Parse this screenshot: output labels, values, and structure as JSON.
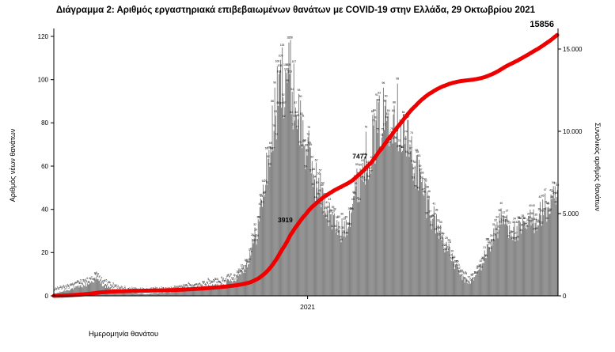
{
  "title": "Διάγραμμα 2: Αριθμός εργαστηριακά επιβεβαιωμένων θανάτων με COVID-19 στην Ελλάδα, 29 Οκτωβρίου 2021",
  "colors": {
    "bar": "#828282",
    "line": "#ee0000",
    "annotation": "#ee0000",
    "axis": "#000000",
    "text": "#000000",
    "background": "#ffffff"
  },
  "chart_data": {
    "type": "bar",
    "description": "Daily laboratory-confirmed COVID-19 deaths in Greece (gray bars, left axis) with cumulative total deaths (red line, right axis), March 2020 to 29 October 2021",
    "x_axis": {
      "label": "Ημερομηνία θανάτου",
      "ticks": [
        {
          "label": "2021",
          "day": 306
        }
      ],
      "start": "2020-03",
      "end": "2021-10-29",
      "total_days": 607
    },
    "left_axis": {
      "label": "Αριθμός νέων θανάτων",
      "ticks": [
        0,
        20,
        40,
        60,
        80,
        100,
        120
      ],
      "range": [
        0,
        125
      ]
    },
    "right_axis": {
      "label": "Συνολικός αριθμός θανάτων",
      "ticks": [
        {
          "value": 0,
          "label": "0"
        },
        {
          "value": 5000,
          "label": "5.000"
        },
        {
          "value": 10000,
          "label": "10.000"
        },
        {
          "value": 15000,
          "label": "15.000"
        }
      ],
      "range": [
        0,
        16600
      ]
    },
    "series": [
      {
        "name": "daily-deaths",
        "type": "bar",
        "color": "#828282",
        "envelope_keypoints": [
          [
            0,
            1
          ],
          [
            15,
            3
          ],
          [
            40,
            6
          ],
          [
            50,
            9
          ],
          [
            62,
            5
          ],
          [
            80,
            2
          ],
          [
            110,
            1
          ],
          [
            140,
            2
          ],
          [
            170,
            4
          ],
          [
            200,
            6
          ],
          [
            218,
            9
          ],
          [
            232,
            16
          ],
          [
            245,
            35
          ],
          [
            255,
            62
          ],
          [
            265,
            92
          ],
          [
            273,
            112
          ],
          [
            280,
            121
          ],
          [
            287,
            110
          ],
          [
            295,
            95
          ],
          [
            305,
            76
          ],
          [
            315,
            62
          ],
          [
            325,
            50
          ],
          [
            335,
            40
          ],
          [
            345,
            33
          ],
          [
            352,
            38
          ],
          [
            360,
            50
          ],
          [
            370,
            65
          ],
          [
            380,
            78
          ],
          [
            390,
            88
          ],
          [
            400,
            96
          ],
          [
            408,
            100
          ],
          [
            415,
            94
          ],
          [
            425,
            82
          ],
          [
            435,
            70
          ],
          [
            445,
            56
          ],
          [
            455,
            44
          ],
          [
            465,
            34
          ],
          [
            475,
            24
          ],
          [
            485,
            15
          ],
          [
            493,
            9
          ],
          [
            500,
            7
          ],
          [
            508,
            10
          ],
          [
            516,
            17
          ],
          [
            524,
            26
          ],
          [
            532,
            34
          ],
          [
            540,
            40
          ],
          [
            548,
            38
          ],
          [
            556,
            33
          ],
          [
            564,
            34
          ],
          [
            572,
            38
          ],
          [
            580,
            41
          ],
          [
            588,
            44
          ],
          [
            596,
            47
          ],
          [
            607,
            50
          ]
        ],
        "peak_value": 121
      },
      {
        "name": "cumulative-deaths",
        "type": "line",
        "color": "#ee0000",
        "final_value": 15856
      }
    ],
    "annotations": [
      {
        "text": "3919",
        "day": 292,
        "emphasis": false
      },
      {
        "text": "7477",
        "day": 382,
        "emphasis": false
      },
      {
        "text": "15856",
        "day": 607,
        "emphasis": true
      }
    ]
  }
}
